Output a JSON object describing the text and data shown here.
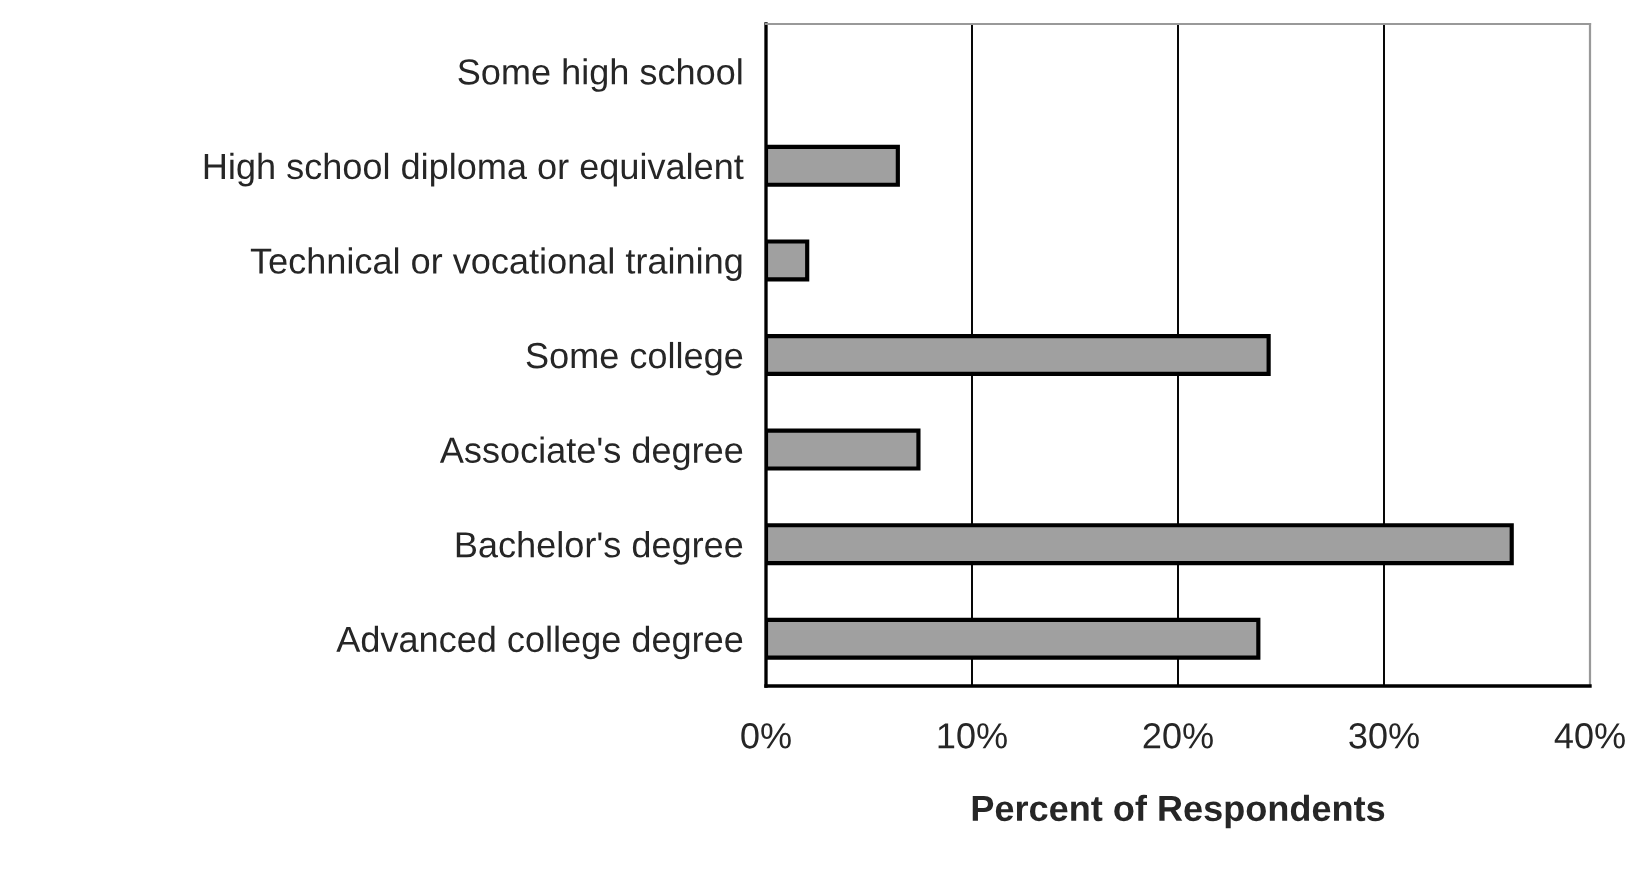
{
  "chart_data": {
    "type": "bar",
    "orientation": "horizontal",
    "categories": [
      "Some high school",
      "High school diploma or equivalent",
      "Technical or vocational training",
      "Some college",
      "Associate's degree",
      "Bachelor's degree",
      "Advanced college degree"
    ],
    "values": [
      0,
      6.4,
      2.0,
      24.4,
      7.4,
      36.2,
      23.9
    ],
    "color": "#a0a0a0",
    "xlabel": "Percent of Respondents",
    "xlim": [
      0,
      40
    ],
    "xticks": [
      {
        "value": 0,
        "label": "0%"
      },
      {
        "value": 10,
        "label": "10%"
      },
      {
        "value": 20,
        "label": "20%"
      },
      {
        "value": 30,
        "label": "30%"
      },
      {
        "value": 40,
        "label": "40%"
      }
    ],
    "grid": "x",
    "legend": false
  }
}
